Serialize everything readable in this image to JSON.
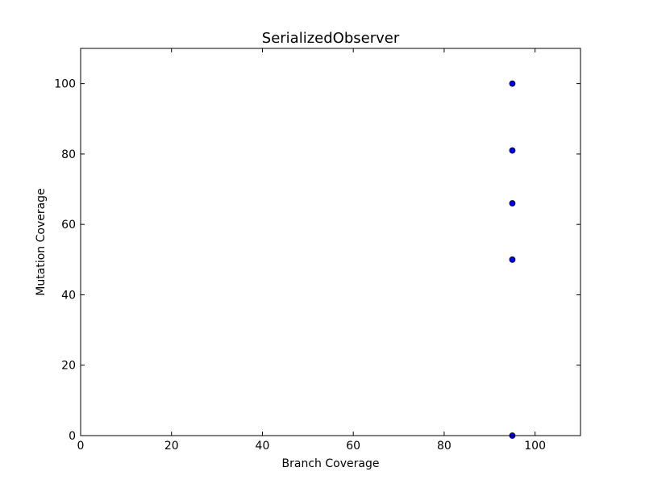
{
  "chart_data": {
    "type": "scatter",
    "title": "SerializedObserver",
    "xlabel": "Branch Coverage",
    "ylabel": "Mutation Coverage",
    "xlim": [
      0,
      110
    ],
    "ylim": [
      0,
      110
    ],
    "x_ticks": [
      0,
      20,
      40,
      60,
      80,
      100
    ],
    "y_ticks": [
      0,
      20,
      40,
      60,
      80,
      100
    ],
    "x_tick_labels": [
      "0",
      "20",
      "40",
      "60",
      "80",
      "100"
    ],
    "y_tick_labels": [
      "0",
      "20",
      "40",
      "60",
      "80",
      "100"
    ],
    "grid": false,
    "legend": "none",
    "series": [
      {
        "color": "#0000ff",
        "marker": "circle",
        "x": [
          95,
          95,
          95,
          95,
          95
        ],
        "y": [
          100,
          81,
          66,
          50,
          0
        ]
      }
    ]
  }
}
